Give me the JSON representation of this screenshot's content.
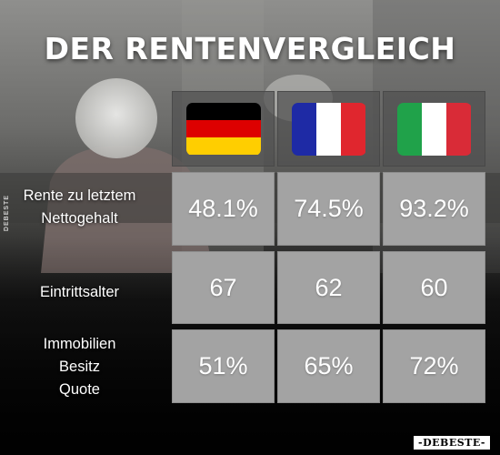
{
  "title": "DER RENTENVERGLEICH",
  "side_watermark": "DEBESTE",
  "corner_watermark": "-DEBESTE-",
  "row_labels": {
    "rente": [
      "Rente zu letztem",
      "Nettogehalt"
    ],
    "eintritt": [
      "Eintrittsalter"
    ],
    "immobilien": [
      "Immobilien",
      "Besitz",
      "Quote"
    ]
  },
  "columns": [
    {
      "country": "germany",
      "flag_colors": [
        "#000000",
        "#DD0000",
        "#FFCE00"
      ],
      "rente": "48.1%",
      "eintritt": "67",
      "immobilien": "51%"
    },
    {
      "country": "france",
      "flag_colors": [
        "#1E2AA5",
        "#FFFFFF",
        "#E0262E"
      ],
      "rente": "74.5%",
      "eintritt": "62",
      "immobilien": "65%"
    },
    {
      "country": "italy",
      "flag_colors": [
        "#20A24A",
        "#FFFFFF",
        "#D92B37"
      ],
      "rente": "93.2%",
      "eintritt": "60",
      "immobilien": "72%"
    }
  ]
}
